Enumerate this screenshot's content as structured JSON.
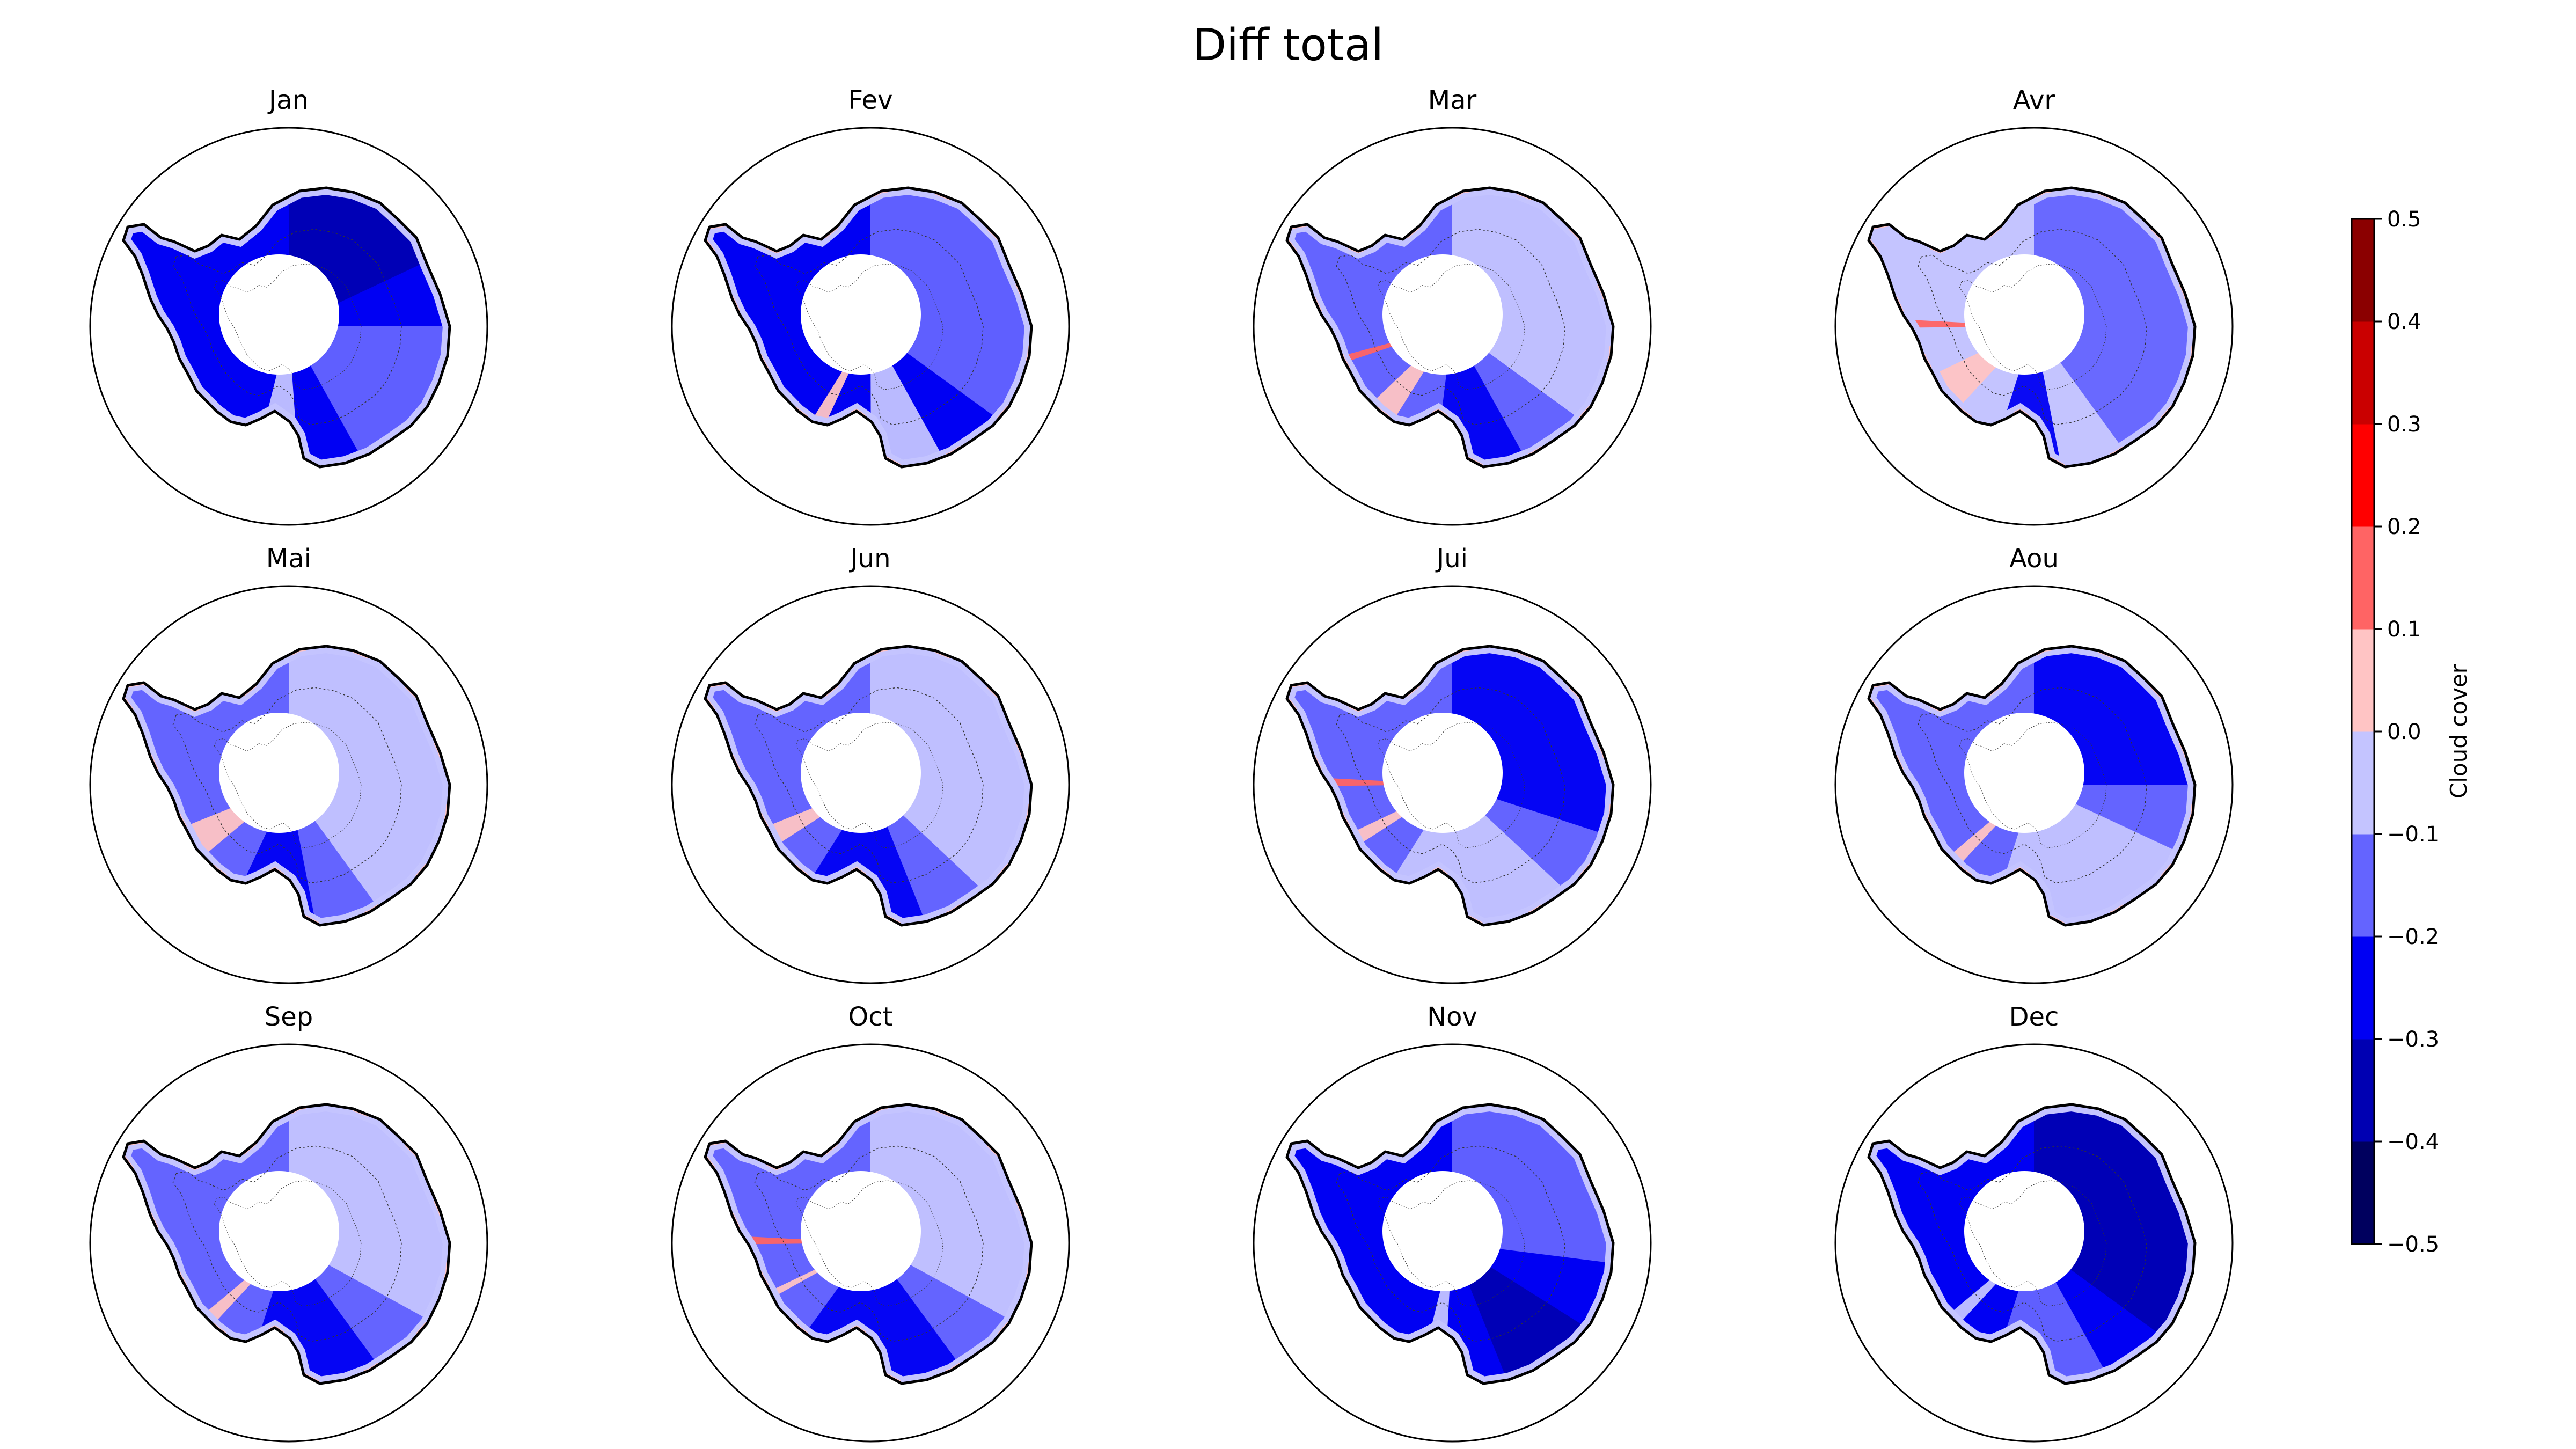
{
  "chart_data": {
    "type": "heatmap",
    "title": "Diff total",
    "projection": "south-polar-stereographic",
    "region": "Antarctica",
    "layout": {
      "rows": 3,
      "cols": 4
    },
    "panels": [
      {
        "title": "Jan",
        "dominant_class": "-0.3 to -0.2",
        "class_fractions": {
          "-0.4 to -0.3": 0.18,
          "-0.3 to -0.2": 0.6,
          "-0.2 to -0.1": 0.17,
          "-0.1 to 0.0": 0.05
        }
      },
      {
        "title": "Fev",
        "dominant_class": "-0.3 to -0.2",
        "class_fractions": {
          "-0.3 to -0.2": 0.55,
          "-0.2 to -0.1": 0.35,
          "-0.1 to 0.0": 0.08,
          "0.0 to 0.1": 0.02
        }
      },
      {
        "title": "Mar",
        "dominant_class": "-0.2 to -0.1",
        "class_fractions": {
          "-0.3 to -0.2": 0.1,
          "-0.2 to -0.1": 0.5,
          "-0.1 to 0.0": 0.35,
          "0.0 to 0.1": 0.04,
          "0.1 to 0.2": 0.01
        }
      },
      {
        "title": "Avr",
        "dominant_class": "-0.1 to 0.0",
        "class_fractions": {
          "-0.3 to -0.2": 0.08,
          "-0.2 to -0.1": 0.4,
          "-0.1 to 0.0": 0.45,
          "0.0 to 0.1": 0.06,
          "0.1 to 0.2": 0.01
        }
      },
      {
        "title": "Mai",
        "dominant_class": "-0.2 to -0.1",
        "class_fractions": {
          "-0.3 to -0.2": 0.1,
          "-0.2 to -0.1": 0.45,
          "-0.1 to 0.0": 0.4,
          "0.0 to 0.1": 0.05
        }
      },
      {
        "title": "Jun",
        "dominant_class": "-0.2 to -0.1",
        "class_fractions": {
          "-0.3 to -0.2": 0.15,
          "-0.2 to -0.1": 0.45,
          "-0.1 to 0.0": 0.37,
          "0.0 to 0.1": 0.03
        }
      },
      {
        "title": "Jui",
        "dominant_class": "-0.2 to -0.1",
        "class_fractions": {
          "-0.3 to -0.2": 0.3,
          "-0.2 to -0.1": 0.45,
          "-0.1 to 0.0": 0.22,
          "0.0 to 0.1": 0.02,
          "0.1 to 0.2": 0.01
        }
      },
      {
        "title": "Aou",
        "dominant_class": "-0.2 to -0.1",
        "class_fractions": {
          "-0.3 to -0.2": 0.25,
          "-0.2 to -0.1": 0.5,
          "-0.1 to 0.0": 0.23,
          "0.0 to 0.1": 0.02
        }
      },
      {
        "title": "Sep",
        "dominant_class": "-0.2 to -0.1",
        "class_fractions": {
          "-0.3 to -0.2": 0.15,
          "-0.2 to -0.1": 0.5,
          "-0.1 to 0.0": 0.33,
          "0.0 to 0.1": 0.02
        }
      },
      {
        "title": "Oct",
        "dominant_class": "-0.2 to -0.1",
        "class_fractions": {
          "-0.3 to -0.2": 0.2,
          "-0.2 to -0.1": 0.45,
          "-0.1 to 0.0": 0.33,
          "0.0 to 0.1": 0.01,
          "0.1 to 0.2": 0.01
        }
      },
      {
        "title": "Nov",
        "dominant_class": "-0.3 to -0.2",
        "class_fractions": {
          "-0.4 to -0.3": 0.1,
          "-0.3 to -0.2": 0.6,
          "-0.2 to -0.1": 0.27,
          "-0.1 to 0.0": 0.03
        }
      },
      {
        "title": "Dec",
        "dominant_class": "-0.3 to -0.2",
        "class_fractions": {
          "-0.4 to -0.3": 0.35,
          "-0.3 to -0.2": 0.5,
          "-0.2 to -0.1": 0.13,
          "-0.1 to 0.0": 0.02
        }
      }
    ],
    "colorbar": {
      "label": "Cloud cover",
      "vmin": -0.5,
      "vmax": 0.5,
      "levels": [
        -0.5,
        -0.4,
        -0.3,
        -0.2,
        -0.1,
        0.0,
        0.1,
        0.2,
        0.3,
        0.4,
        0.5
      ],
      "tick_labels": [
        "−0.5",
        "−0.4",
        "−0.3",
        "−0.2",
        "−0.1",
        "0.0",
        "0.1",
        "0.2",
        "0.3",
        "0.4",
        "0.5"
      ],
      "colors": [
        "#00005e",
        "#0000b2",
        "#0000f3",
        "#6464ff",
        "#c4c4ff",
        "#ffc4c4",
        "#ff6464",
        "#ff0000",
        "#ca0000",
        "#8b0000"
      ],
      "orientation": "vertical",
      "placement": "right"
    },
    "grid": false,
    "legend": "none"
  }
}
